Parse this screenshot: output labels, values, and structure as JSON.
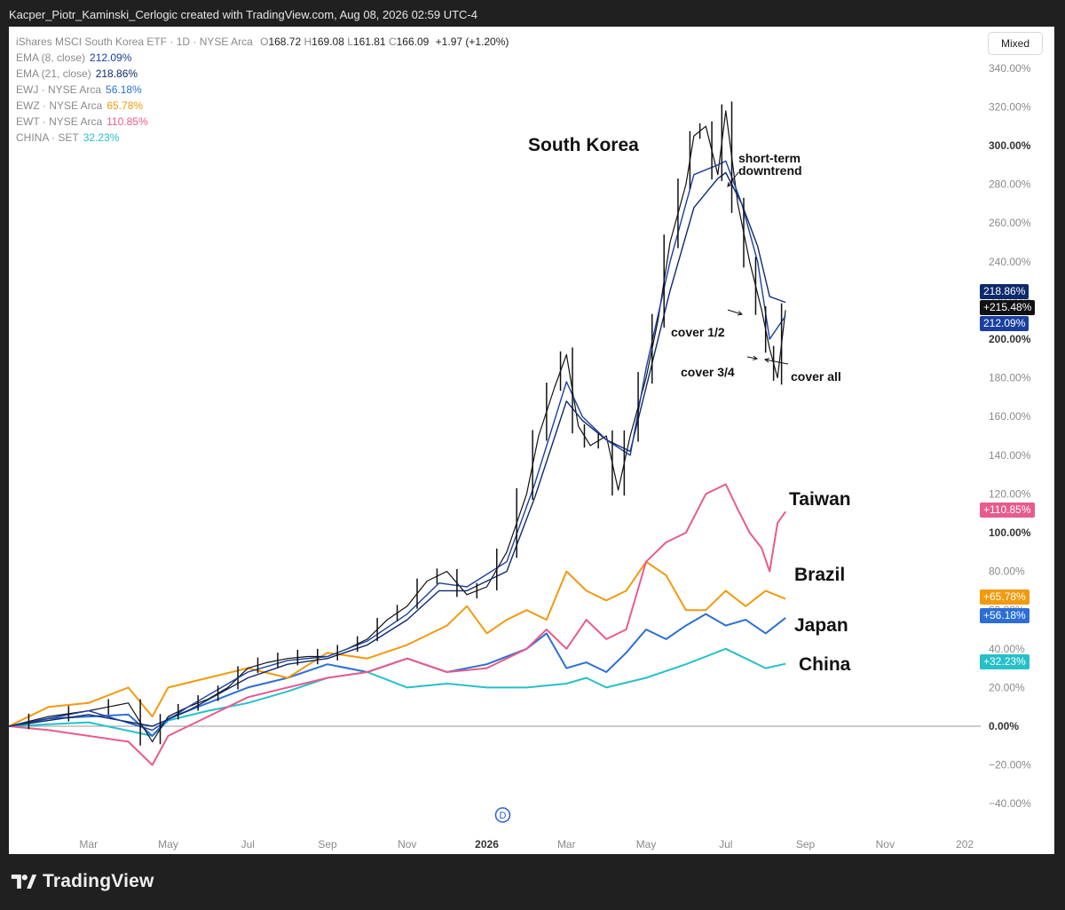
{
  "credit": "Kacper_Piotr_Kaminski_Cerlogic created with TradingView.com, Aug 08, 2026 02:59 UTC-4",
  "brand": "TradingView",
  "mode_button": "Mixed",
  "legend": {
    "main": {
      "name": "iShares MSCI South Korea ETF · 1D · NYSE Arca",
      "o_label": "O",
      "o": "168.72",
      "h_label": "H",
      "h": "169.08",
      "l_label": "L",
      "l": "161.81",
      "c_label": "C",
      "c": "166.09",
      "change": "+1.97 (+1.20%)"
    },
    "rows": [
      {
        "label": "EMA (8, close)",
        "value": "212.09%",
        "color": "#1a3fa0"
      },
      {
        "label": "EMA (21, close)",
        "value": "218.86%",
        "color": "#0d2a6b"
      },
      {
        "label": "EWJ · NYSE Arca",
        "value": "56.18%",
        "color": "#2b6fd6"
      },
      {
        "label": "EWZ · NYSE Arca",
        "value": "65.78%",
        "color": "#f29a0e"
      },
      {
        "label": "EWT · NYSE Arca",
        "value": "110.85%",
        "color": "#e85b8f"
      },
      {
        "label": "CHINA · SET",
        "value": "32.23%",
        "color": "#26c0c9"
      }
    ]
  },
  "annotations": {
    "south_korea": "South Korea",
    "short_term": "short-term",
    "downtrend": "downtrend",
    "cover_half": "cover 1/2",
    "cover_three_quarters": "cover 3/4",
    "cover_all": "cover all",
    "taiwan": "Taiwan",
    "brazil": "Brazil",
    "japan": "Japan",
    "china": "China"
  },
  "price_tags": {
    "ema21": "218.86%",
    "last": "+215.48%",
    "ema8": "212.09%",
    "ewt": "+110.85%",
    "ewz": "+65.78%",
    "ewj": "+56.18%",
    "china": "+32.23%"
  },
  "colors": {
    "korea": "#111111",
    "ema8": "#1a3fa0",
    "ema21": "#0d2a6b",
    "ewj": "#2b6fd6",
    "ewz": "#f29a0e",
    "ewt": "#e85b8f",
    "china": "#26c0c9",
    "axis_text": "#8a8a8a"
  },
  "chart_data": {
    "type": "line",
    "scale": "percent",
    "ylim": [
      -45,
      345
    ],
    "y_ticks": [
      "340.00%",
      "320.00%",
      "300.00%",
      "280.00%",
      "260.00%",
      "240.00%",
      "220.00%",
      "200.00%",
      "180.00%",
      "160.00%",
      "140.00%",
      "120.00%",
      "100.00%",
      "80.00%",
      "60.00%",
      "40.00%",
      "20.00%",
      "0.00%",
      "−20.00%",
      "−40.00%"
    ],
    "y_tick_values": [
      340,
      320,
      300,
      280,
      260,
      240,
      220,
      200,
      180,
      160,
      140,
      120,
      100,
      80,
      60,
      40,
      20,
      0,
      -20,
      -40
    ],
    "bold_ticks": [
      300,
      200,
      100,
      0
    ],
    "x_ticks": [
      "Mar",
      "May",
      "Jul",
      "Sep",
      "Nov",
      "2026",
      "Mar",
      "May",
      "Jul",
      "Sep",
      "Nov",
      "202"
    ],
    "x_tick_months": [
      2,
      4,
      6,
      8,
      10,
      12,
      14,
      16,
      18,
      20,
      22,
      24
    ],
    "xlim_months": [
      0,
      24.4
    ],
    "series": [
      {
        "name": "iShares MSCI South Korea ETF",
        "key": "korea",
        "x": [
          0,
          1,
          2,
          3,
          3.6,
          4,
          4.5,
          5,
          5.5,
          6,
          6.5,
          7,
          7.5,
          8,
          8.5,
          9,
          9.5,
          10,
          10.5,
          11,
          11.5,
          12,
          12.5,
          13,
          13.3,
          13.7,
          14,
          14.3,
          14.6,
          15,
          15.3,
          15.6,
          16,
          16.3,
          16.6,
          17,
          17.2,
          17.5,
          17.8,
          18,
          18.3,
          18.6,
          18.9,
          19.1,
          19.3,
          19.5
        ],
        "values": [
          0,
          5,
          8,
          12,
          -8,
          5,
          10,
          14,
          20,
          30,
          33,
          35,
          36,
          36,
          40,
          45,
          55,
          62,
          75,
          80,
          68,
          72,
          90,
          120,
          150,
          175,
          192,
          155,
          145,
          150,
          122,
          150,
          180,
          210,
          250,
          280,
          305,
          310,
          285,
          318,
          270,
          240,
          215,
          195,
          180,
          215
        ]
      },
      {
        "name": "EMA (8, close)",
        "key": "ema8",
        "x": [
          0,
          2,
          3.6,
          4.5,
          6,
          7,
          8,
          9,
          10,
          10.8,
          11.5,
          12.5,
          13.2,
          14,
          14.4,
          15,
          15.6,
          16,
          16.6,
          17.2,
          17.8,
          18,
          18.4,
          18.8,
          19.1,
          19.5
        ],
        "values": [
          0,
          8,
          -2,
          10,
          28,
          34,
          36,
          44,
          58,
          74,
          72,
          85,
          125,
          178,
          160,
          148,
          140,
          185,
          240,
          285,
          290,
          292,
          270,
          240,
          200,
          212
        ]
      },
      {
        "name": "EMA (21, close)",
        "key": "ema21",
        "x": [
          0,
          2,
          3.6,
          4.5,
          6,
          7,
          8,
          9,
          10,
          10.8,
          11.5,
          12.5,
          13.2,
          14,
          14.4,
          15,
          15.6,
          16,
          16.6,
          17.2,
          17.8,
          18,
          18.4,
          18.8,
          19.1,
          19.5
        ],
        "values": [
          0,
          6,
          0,
          8,
          25,
          32,
          35,
          42,
          55,
          70,
          70,
          80,
          118,
          168,
          158,
          148,
          142,
          175,
          225,
          268,
          283,
          286,
          270,
          248,
          222,
          219
        ]
      },
      {
        "name": "EWJ · NYSE Arca",
        "key": "ewj",
        "x": [
          0,
          1,
          2,
          3,
          3.6,
          4,
          5,
          6,
          7,
          8,
          9,
          10,
          11,
          12,
          13,
          13.5,
          14,
          14.5,
          15,
          15.5,
          16,
          16.5,
          17,
          17.5,
          18,
          18.5,
          19,
          19.5
        ],
        "values": [
          0,
          4,
          5,
          6,
          -5,
          4,
          12,
          20,
          25,
          32,
          28,
          35,
          28,
          32,
          40,
          48,
          30,
          33,
          28,
          38,
          50,
          45,
          52,
          58,
          52,
          55,
          48,
          56
        ]
      },
      {
        "name": "EWZ · NYSE Arca",
        "key": "ewz",
        "x": [
          0,
          1,
          2,
          3,
          3.6,
          4,
          5,
          6,
          7,
          8,
          9,
          10,
          11,
          11.5,
          12,
          12.5,
          13,
          13.5,
          14,
          14.5,
          15,
          15.5,
          16,
          16.5,
          17,
          17.5,
          18,
          18.5,
          19,
          19.5
        ],
        "values": [
          0,
          10,
          12,
          20,
          5,
          20,
          25,
          30,
          25,
          38,
          35,
          42,
          52,
          62,
          48,
          55,
          60,
          55,
          80,
          70,
          65,
          70,
          85,
          78,
          60,
          60,
          70,
          62,
          70,
          65.78
        ]
      },
      {
        "name": "EWT · NYSE Arca",
        "key": "ewt",
        "x": [
          0,
          1,
          2,
          3,
          3.6,
          4,
          5,
          6,
          7,
          8,
          9,
          10,
          11,
          12,
          13,
          13.5,
          14,
          14.5,
          15,
          15.5,
          16,
          16.5,
          17,
          17.5,
          18,
          18.3,
          18.6,
          18.9,
          19.1,
          19.3,
          19.5
        ],
        "values": [
          0,
          -2,
          -5,
          -8,
          -20,
          -5,
          5,
          15,
          20,
          25,
          28,
          35,
          28,
          30,
          40,
          50,
          40,
          55,
          45,
          50,
          85,
          95,
          100,
          120,
          125,
          112,
          100,
          92,
          80,
          105,
          110.85
        ]
      },
      {
        "name": "CHINA · SET",
        "key": "china",
        "x": [
          0,
          2,
          3.6,
          4,
          5,
          6,
          7,
          8,
          9,
          10,
          11,
          12,
          13,
          14,
          14.5,
          15,
          16,
          17,
          17.5,
          18,
          18.5,
          19,
          19.5
        ],
        "values": [
          0,
          2,
          -5,
          3,
          8,
          12,
          18,
          25,
          28,
          20,
          22,
          20,
          20,
          22,
          25,
          20,
          25,
          32,
          36,
          40,
          35,
          30,
          32.23
        ]
      }
    ],
    "zero_line": 0
  }
}
